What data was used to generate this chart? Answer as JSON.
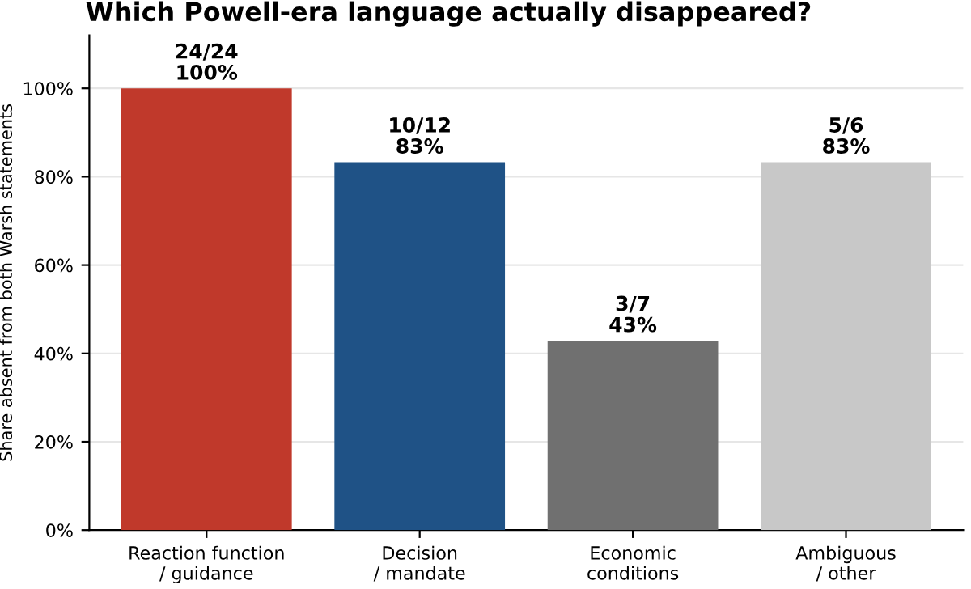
{
  "chart_data": {
    "type": "bar",
    "title": "Which Powell-era language actually disappeared?",
    "ylabel": "Share absent from both Warsh statements",
    "categories": [
      "Reaction function\n/ guidance",
      "Decision\n/ mandate",
      "Economic\nconditions",
      "Ambiguous\n/ other"
    ],
    "values": [
      100,
      83.3,
      42.9,
      83.3
    ],
    "colors": [
      "#c0392b",
      "#1f5286",
      "#707070",
      "#c8c8c8"
    ],
    "value_labels": [
      "24/24\n100%",
      "10/12\n83%",
      "3/7\n43%",
      "5/6\n83%"
    ],
    "ylim": [
      0,
      112
    ],
    "yticks": [
      {
        "value": 0,
        "label": "0%"
      },
      {
        "value": 20,
        "label": "20%"
      },
      {
        "value": 40,
        "label": "40%"
      },
      {
        "value": 60,
        "label": "60%"
      },
      {
        "value": 80,
        "label": "80%"
      },
      {
        "value": 100,
        "label": "100%"
      }
    ],
    "grid": "y",
    "legend": false
  }
}
